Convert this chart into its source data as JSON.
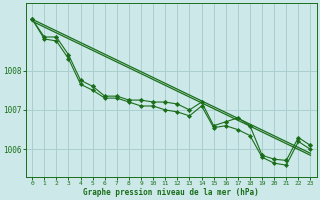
{
  "title": "Graphe pression niveau de la mer (hPa)",
  "background_color": "#cce8e8",
  "grid_color": "#aacece",
  "line_color": "#1a6e1a",
  "marker_color": "#1a6e1a",
  "xlim": [
    -0.5,
    23.5
  ],
  "ylim": [
    1005.3,
    1009.7
  ],
  "yticks": [
    1006,
    1007,
    1008
  ],
  "xticks": [
    0,
    1,
    2,
    3,
    4,
    5,
    6,
    7,
    8,
    9,
    10,
    11,
    12,
    13,
    14,
    15,
    16,
    17,
    18,
    19,
    20,
    21,
    22,
    23
  ],
  "series1_x": [
    0,
    1,
    2,
    3,
    4,
    5,
    6,
    7,
    8,
    9,
    10,
    11,
    12,
    13,
    14,
    15,
    16,
    17,
    18,
    19,
    20,
    21,
    22,
    23
  ],
  "series1_y": [
    1009.3,
    1008.85,
    1008.85,
    1008.4,
    1007.75,
    1007.6,
    1007.35,
    1007.35,
    1007.25,
    1007.25,
    1007.2,
    1007.2,
    1007.15,
    1007.0,
    1007.2,
    1006.6,
    1006.7,
    1006.8,
    1006.6,
    1005.85,
    1005.75,
    1005.72,
    1006.3,
    1006.1
  ],
  "series2_x": [
    0,
    1,
    2,
    3,
    4,
    5,
    6,
    7,
    8,
    9,
    10,
    11,
    12,
    13,
    14,
    15,
    16,
    17,
    18,
    19,
    20,
    21,
    22,
    23
  ],
  "series2_y": [
    1009.3,
    1008.8,
    1008.75,
    1008.3,
    1007.65,
    1007.5,
    1007.3,
    1007.3,
    1007.2,
    1007.1,
    1007.1,
    1007.0,
    1006.95,
    1006.85,
    1007.1,
    1006.55,
    1006.6,
    1006.5,
    1006.35,
    1005.8,
    1005.65,
    1005.6,
    1006.2,
    1006.0
  ],
  "trend1_x": [
    0,
    23
  ],
  "trend1_y": [
    1009.3,
    1005.9
  ],
  "trend2_x": [
    0,
    23
  ],
  "trend2_y": [
    1009.25,
    1005.85
  ]
}
